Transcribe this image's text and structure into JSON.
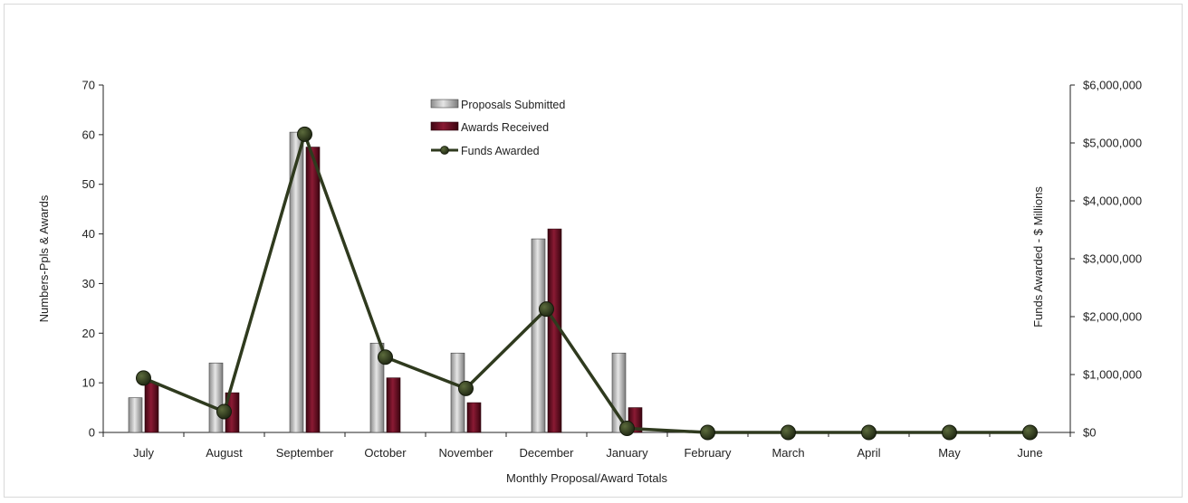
{
  "chart_data": {
    "type": "bar",
    "categories": [
      "July",
      "August",
      "September",
      "October",
      "November",
      "December",
      "January",
      "February",
      "March",
      "April",
      "May",
      "June"
    ],
    "series": [
      {
        "name": "Proposals Submitted",
        "type": "bar",
        "axis": "left",
        "color": "#a8a8a8",
        "values": [
          7,
          14,
          60.5,
          18,
          16,
          39,
          16,
          0,
          0,
          0,
          0,
          0
        ]
      },
      {
        "name": "Awards Received",
        "type": "bar",
        "axis": "left",
        "color": "#6b0f24",
        "values": [
          10,
          8,
          57.5,
          11,
          6,
          41,
          5,
          0,
          0,
          0,
          0,
          0
        ]
      },
      {
        "name": "Funds Awarded",
        "type": "line",
        "axis": "right",
        "color": "#2f3a1e",
        "values": [
          940000,
          360000,
          5150000,
          1300000,
          760000,
          2130000,
          70000,
          0,
          0,
          0,
          0,
          0
        ]
      }
    ],
    "xlabel": "Monthly Proposal/Award Totals",
    "ylabel": "Numbers-Ppls & Awards",
    "y2label": "Funds Awarded - $ Millions",
    "ylim": [
      0,
      70
    ],
    "y2lim": [
      0,
      6000000
    ],
    "yticks": [
      "0",
      "10",
      "20",
      "30",
      "40",
      "50",
      "60",
      "70"
    ],
    "y2ticks": [
      "$0",
      "$1,000,000",
      "$2,000,000",
      "$3,000,000",
      "$4,000,000",
      "$5,000,000",
      "$6,000,000"
    ],
    "grid": false,
    "legend": "top-center"
  }
}
